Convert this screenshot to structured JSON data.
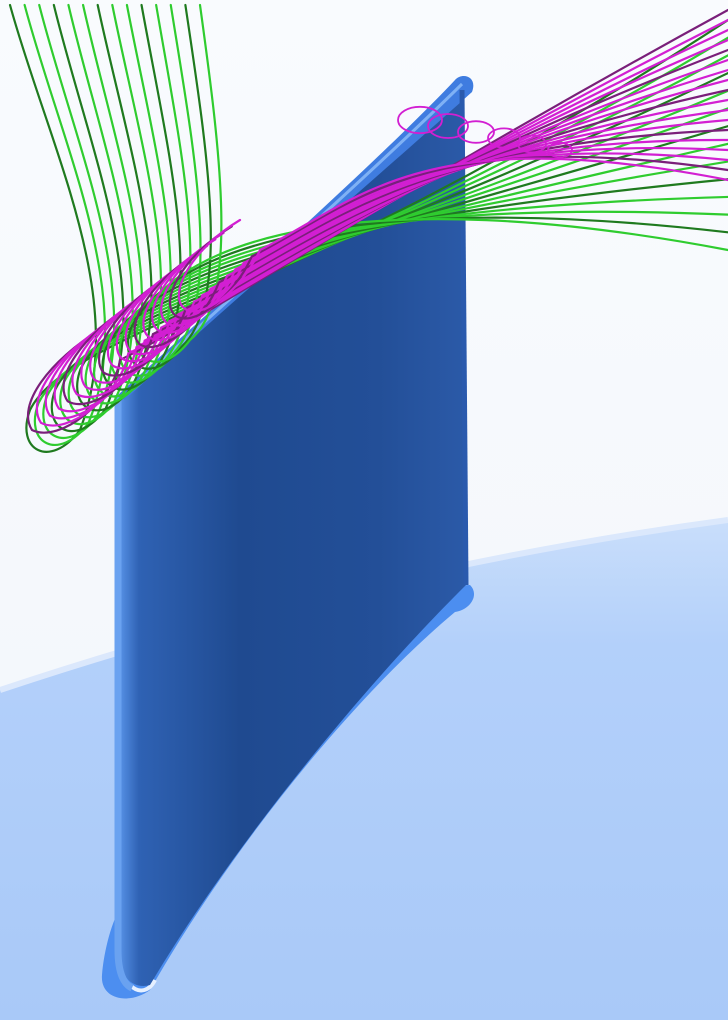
{
  "scene": {
    "subject": "turbine-blade-streamlines",
    "colors": {
      "background": "#f4f7fb",
      "hub_surface": "#aecdf9",
      "hub_highlight": "#c9defb",
      "blade_dark": "#1f4a90",
      "blade_mid": "#2b5aa8",
      "blade_light": "#4a86df",
      "fillet": "#4c8ef0",
      "streamline_green": "#2fcc2f",
      "streamline_green_dark": "#1f7a1f",
      "streamline_magenta": "#d21fd2",
      "streamline_magenta_dark": "#7a1f7a"
    },
    "streamline_sets": [
      {
        "name": "green",
        "line_count": 14
      },
      {
        "name": "magenta",
        "line_count": 18
      }
    ]
  }
}
